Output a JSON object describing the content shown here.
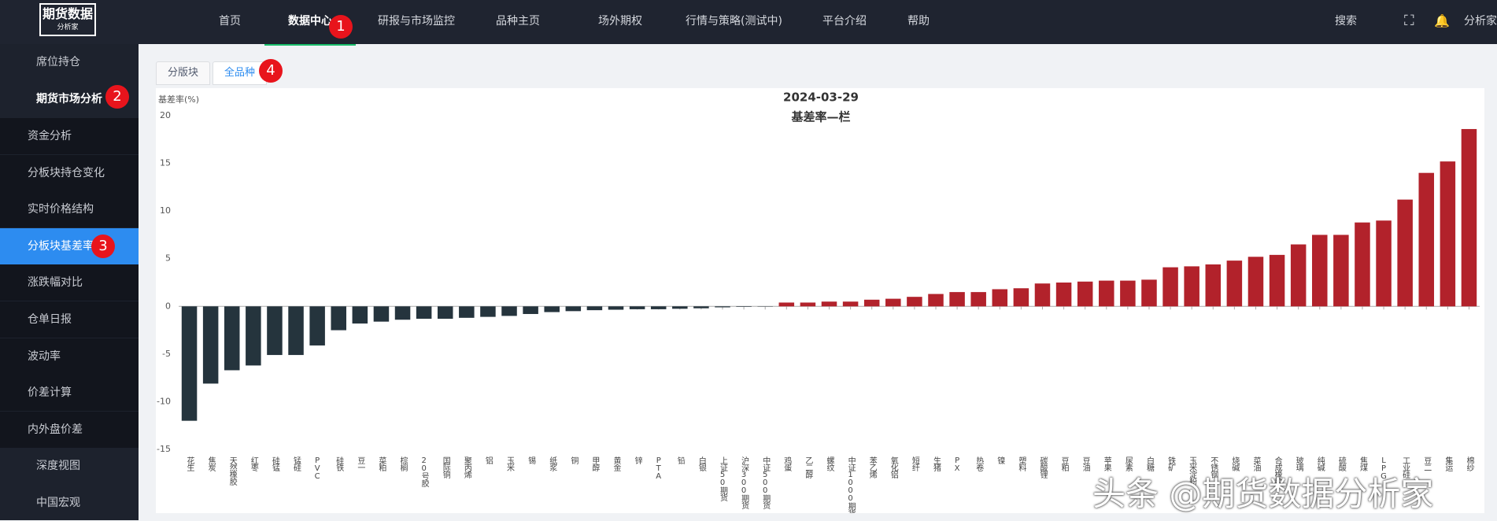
{
  "header": {
    "logo": "期货数据",
    "logo_sub": "分析家",
    "nav": [
      "首页",
      "数据中心",
      "研报与市场监控",
      "品种主页",
      "场外期权",
      "行情与策略(测试中)",
      "平台介绍",
      "帮助"
    ],
    "search": "搜索",
    "user": "分析家"
  },
  "sidebar": {
    "groups": [
      "席位持仓",
      "期货市场分析"
    ],
    "items": [
      "资金分析",
      "分板块持仓变化",
      "实时价格结构",
      "分板块基差率",
      "涨跌幅对比",
      "仓单日报",
      "波动率",
      "价差计算",
      "内外盘价差"
    ],
    "bottom": [
      "深度视图",
      "中国宏观"
    ]
  },
  "tabs": [
    "分版块",
    "全品种"
  ],
  "annotations": [
    "1",
    "2",
    "3",
    "4"
  ],
  "watermark": "头条 @期货数据分析家",
  "chart_data": {
    "type": "bar",
    "title": "2024-03-29",
    "subtitle": "基差率—栏",
    "y_label": "基差率(%)",
    "categories": [
      "花生",
      "焦炭",
      "天然橡胶",
      "红枣",
      "硅锰",
      "锰硅",
      "PVC",
      "硅铁",
      "豆一",
      "菜粕",
      "棕榈",
      "20号胶",
      "国际铜",
      "聚丙烯",
      "铝",
      "玉米",
      "锡",
      "纸浆",
      "铜",
      "甲醇",
      "黄金",
      "锌",
      "PTA",
      "铅",
      "白银",
      "上证50期货",
      "沪深300期货",
      "中证500期货",
      "鸡蛋",
      "乙二醇",
      "螺纹",
      "中证1000期货",
      "苯乙烯",
      "氧化铝",
      "短纤",
      "生猪",
      "PX",
      "热卷",
      "镍",
      "塑料",
      "碳酸锂",
      "豆粕",
      "豆油",
      "苹果",
      "尿素",
      "白糖",
      "铁矿",
      "玉米淀粉",
      "不锈钢",
      "烧碱",
      "菜油",
      "合成橡胶",
      "玻璃",
      "纯碱",
      "硫酸",
      "焦煤",
      "LPG",
      "工业硅",
      "豆二",
      "集运",
      "棉纱"
    ],
    "values": [
      -12.0,
      -8.1,
      -6.7,
      -6.2,
      -5.1,
      -5.1,
      -4.1,
      -2.5,
      -1.8,
      -1.6,
      -1.4,
      -1.3,
      -1.3,
      -1.2,
      -1.1,
      -1.0,
      -0.8,
      -0.6,
      -0.5,
      -0.4,
      -0.35,
      -0.3,
      -0.3,
      -0.25,
      -0.2,
      -0.1,
      -0.05,
      -0.03,
      0.4,
      0.4,
      0.5,
      0.5,
      0.7,
      0.8,
      1.0,
      1.3,
      1.5,
      1.5,
      1.8,
      1.9,
      2.4,
      2.5,
      2.6,
      2.7,
      2.7,
      2.8,
      4.1,
      4.2,
      4.4,
      4.8,
      5.2,
      5.4,
      6.5,
      7.5,
      7.5,
      8.8,
      9.0,
      11.2,
      14.0,
      15.2,
      18.6
    ],
    "colors": {
      "negative": "#25343d",
      "positive": "#b2222b"
    },
    "ylim": [
      -15,
      20
    ],
    "yticks": [
      -15,
      -10,
      -5,
      0,
      5,
      10,
      15,
      20
    ],
    "grid": false
  }
}
